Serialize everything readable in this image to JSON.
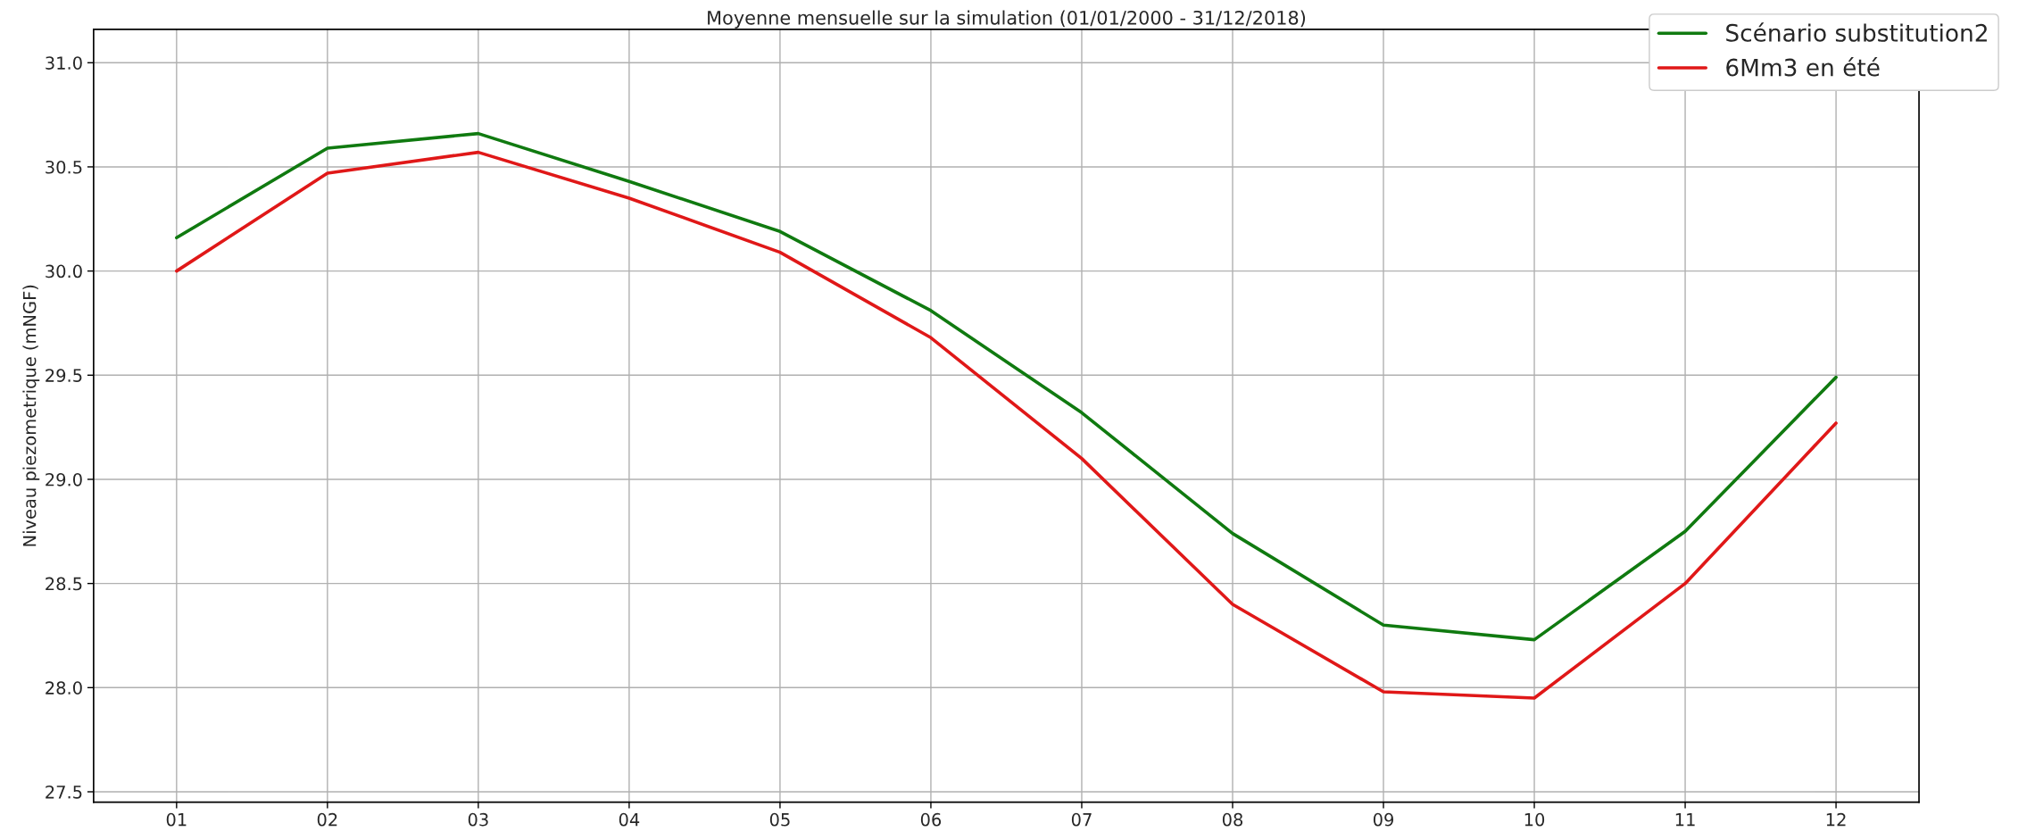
{
  "chart_data": {
    "type": "line",
    "title": "Moyenne mensuelle sur la simulation (01/01/2000 - 31/12/2018)",
    "ylabel": "Niveau piezometrique (mNGF)",
    "categories": [
      "01",
      "02",
      "03",
      "04",
      "05",
      "06",
      "07",
      "08",
      "09",
      "10",
      "11",
      "12"
    ],
    "series": [
      {
        "name": "Scénario substitution2",
        "color": "#107a10",
        "values": [
          30.16,
          30.59,
          30.66,
          30.43,
          30.19,
          29.81,
          29.32,
          28.74,
          28.3,
          28.23,
          28.75,
          29.49
        ]
      },
      {
        "name": "6Mm3 en été",
        "color": "#e01818",
        "values": [
          30.0,
          30.47,
          30.57,
          30.35,
          30.09,
          29.68,
          29.1,
          28.4,
          27.98,
          27.95,
          28.5,
          29.27
        ]
      }
    ],
    "ylim": [
      27.45,
      31.16
    ],
    "yticks": [
      {
        "value": 27.5,
        "label": "27.5"
      },
      {
        "value": 28,
        "label": "28.0"
      },
      {
        "value": 28.5,
        "label": "28.5"
      },
      {
        "value": 29,
        "label": "29.0"
      },
      {
        "value": 29.5,
        "label": "29.5"
      },
      {
        "value": 30,
        "label": "30.0"
      },
      {
        "value": 30.5,
        "label": "30.5"
      },
      {
        "value": 31,
        "label": "31.0"
      }
    ],
    "grid": true,
    "legend": "top right",
    "marker": "none",
    "line_style": "solid"
  }
}
